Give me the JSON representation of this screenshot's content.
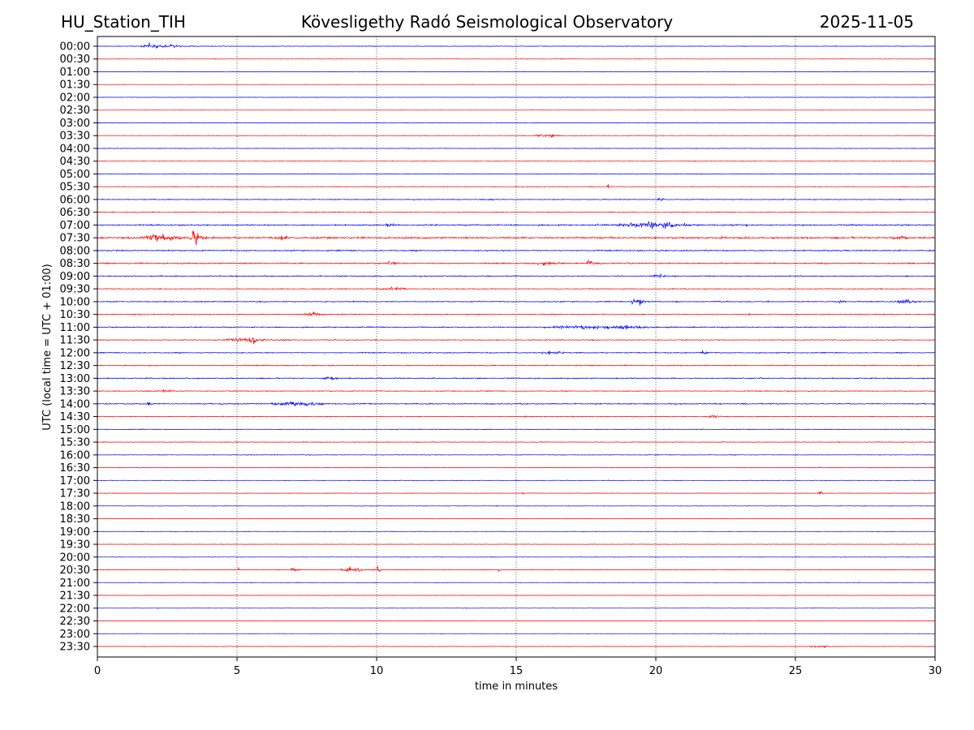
{
  "header": {
    "station": "HU_Station_TIH",
    "observatory": "Kövesligethy Radó Seismological Observatory",
    "date": "2025-11-05"
  },
  "chart_data": {
    "type": "line",
    "title": "Kövesligethy Radó Seismological Observatory",
    "xlabel": "time in minutes",
    "ylabel": "UTC (local time = UTC + 01:00)",
    "xlim": [
      0,
      30
    ],
    "xticks": [
      0,
      5,
      10,
      15,
      20,
      25,
      30
    ],
    "grid": "vertical dotted at x ticks",
    "colors": [
      "#0000ff",
      "#ff0000"
    ],
    "rows": [
      "00:00",
      "00:30",
      "01:00",
      "01:30",
      "02:00",
      "02:30",
      "03:00",
      "03:30",
      "04:00",
      "04:30",
      "05:00",
      "05:30",
      "06:00",
      "06:30",
      "07:00",
      "07:30",
      "08:00",
      "08:30",
      "09:00",
      "09:30",
      "10:00",
      "10:30",
      "11:00",
      "11:30",
      "12:00",
      "12:30",
      "13:00",
      "13:30",
      "14:00",
      "14:30",
      "15:00",
      "15:30",
      "16:00",
      "16:30",
      "17:00",
      "17:30",
      "18:00",
      "18:30",
      "19:00",
      "19:30",
      "20:00",
      "20:30",
      "21:00",
      "21:30",
      "22:00",
      "22:30",
      "23:00",
      "23:30"
    ],
    "noise_amplitude": [
      0.07,
      0.06,
      0.06,
      0.05,
      0.05,
      0.05,
      0.06,
      0.07,
      0.07,
      0.07,
      0.07,
      0.08,
      0.1,
      0.1,
      0.15,
      0.2,
      0.15,
      0.15,
      0.12,
      0.1,
      0.12,
      0.12,
      0.12,
      0.1,
      0.12,
      0.12,
      0.12,
      0.1,
      0.12,
      0.1,
      0.08,
      0.08,
      0.07,
      0.07,
      0.06,
      0.06,
      0.06,
      0.06,
      0.06,
      0.06,
      0.06,
      0.07,
      0.06,
      0.05,
      0.05,
      0.05,
      0.05,
      0.06
    ],
    "events": [
      {
        "row": "00:00",
        "t": 1.3,
        "dur": 3.0,
        "amp": 0.3
      },
      {
        "row": "03:30",
        "t": 15.5,
        "dur": 2.0,
        "amp": 0.25
      },
      {
        "row": "05:30",
        "t": 18.2,
        "dur": 0.3,
        "amp": 0.4
      },
      {
        "row": "06:00",
        "t": 14.0,
        "dur": 0.4,
        "amp": 0.3
      },
      {
        "row": "06:00",
        "t": 20.0,
        "dur": 0.6,
        "amp": 0.25
      },
      {
        "row": "07:00",
        "t": 10.2,
        "dur": 1.0,
        "amp": 0.3
      },
      {
        "row": "07:00",
        "t": 18.5,
        "dur": 4.8,
        "amp": 0.55
      },
      {
        "row": "07:00",
        "t": 20.2,
        "dur": 0.5,
        "amp": 0.9
      },
      {
        "row": "07:30",
        "t": 1.5,
        "dur": 2.8,
        "amp": 0.7
      },
      {
        "row": "07:30",
        "t": 3.3,
        "dur": 0.6,
        "amp": 1.6
      },
      {
        "row": "07:30",
        "t": 6.3,
        "dur": 1.0,
        "amp": 0.4
      },
      {
        "row": "07:30",
        "t": 28.3,
        "dur": 1.5,
        "amp": 0.35
      },
      {
        "row": "08:30",
        "t": 10.2,
        "dur": 1.2,
        "amp": 0.3
      },
      {
        "row": "08:30",
        "t": 15.5,
        "dur": 2.0,
        "amp": 0.35
      },
      {
        "row": "08:30",
        "t": 17.5,
        "dur": 0.5,
        "amp": 0.55
      },
      {
        "row": "09:00",
        "t": 19.8,
        "dur": 1.0,
        "amp": 0.4
      },
      {
        "row": "09:30",
        "t": 10.0,
        "dur": 2.0,
        "amp": 0.3
      },
      {
        "row": "10:00",
        "t": 19.0,
        "dur": 1.2,
        "amp": 0.5
      },
      {
        "row": "10:00",
        "t": 26.5,
        "dur": 0.6,
        "amp": 0.35
      },
      {
        "row": "10:00",
        "t": 28.5,
        "dur": 1.5,
        "amp": 0.4
      },
      {
        "row": "10:30",
        "t": 7.3,
        "dur": 1.5,
        "amp": 0.35
      },
      {
        "row": "11:00",
        "t": 15.5,
        "dur": 8.0,
        "amp": 0.35
      },
      {
        "row": "11:30",
        "t": 4.5,
        "dur": 2.8,
        "amp": 0.4
      },
      {
        "row": "11:30",
        "t": 5.4,
        "dur": 0.6,
        "amp": 1.0
      },
      {
        "row": "12:00",
        "t": 15.8,
        "dur": 1.6,
        "amp": 0.35
      },
      {
        "row": "12:00",
        "t": 21.6,
        "dur": 0.4,
        "amp": 0.45
      },
      {
        "row": "13:00",
        "t": 8.0,
        "dur": 1.2,
        "amp": 0.3
      },
      {
        "row": "13:30",
        "t": 2.0,
        "dur": 1.5,
        "amp": 0.25
      },
      {
        "row": "14:00",
        "t": 1.7,
        "dur": 0.4,
        "amp": 0.45
      },
      {
        "row": "14:00",
        "t": 6.0,
        "dur": 3.8,
        "amp": 0.45
      },
      {
        "row": "14:30",
        "t": 21.8,
        "dur": 1.0,
        "amp": 0.35
      },
      {
        "row": "17:30",
        "t": 15.2,
        "dur": 0.1,
        "amp": 0.3
      },
      {
        "row": "17:30",
        "t": 25.8,
        "dur": 0.3,
        "amp": 0.3
      },
      {
        "row": "20:30",
        "t": 5.0,
        "dur": 0.2,
        "amp": 0.3
      },
      {
        "row": "20:30",
        "t": 6.9,
        "dur": 0.4,
        "amp": 0.45
      },
      {
        "row": "20:30",
        "t": 8.6,
        "dur": 1.6,
        "amp": 0.4
      },
      {
        "row": "20:30",
        "t": 10.0,
        "dur": 0.2,
        "amp": 0.7
      },
      {
        "row": "20:30",
        "t": 14.3,
        "dur": 0.3,
        "amp": 0.3
      },
      {
        "row": "23:30",
        "t": 25.5,
        "dur": 1.5,
        "amp": 0.2
      }
    ]
  }
}
